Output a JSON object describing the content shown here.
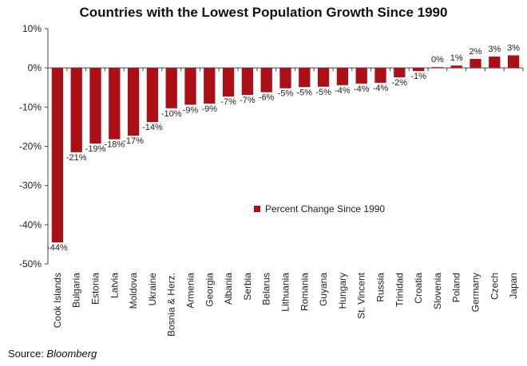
{
  "chart_data": {
    "type": "bar",
    "title": "Countries with the Lowest Population Growth Since 1990",
    "categories": [
      "Cook Islands",
      "Bulgaria",
      "Estonia",
      "Latvia",
      "Moldova",
      "Ukraine",
      "Bosnia & Herz.",
      "Armenia",
      "Georgia",
      "Albania",
      "Serbia",
      "Belarus",
      "Lithuania",
      "Romania",
      "Guyana",
      "Hungary",
      "St. Vincent",
      "Russia",
      "Trinidad",
      "Croatia",
      "Slovenia",
      "Poland",
      "Germany",
      "Czech",
      "Japan"
    ],
    "values": [
      -44,
      -21,
      -19,
      -18,
      -17,
      -14,
      -10,
      -9,
      -9,
      -7,
      -7,
      -6,
      -5,
      -5,
      -5,
      -4,
      -4,
      -4,
      -2,
      -1,
      0,
      1,
      2,
      3,
      3
    ],
    "plot_values": [
      -44.5,
      -21.5,
      -19.3,
      -18.2,
      -17.3,
      -13.8,
      -10.3,
      -9.4,
      -9.1,
      -7.3,
      -6.9,
      -6.2,
      -5.2,
      -4.9,
      -4.8,
      -4.4,
      -4.0,
      -3.8,
      -2.4,
      -0.8,
      0.2,
      0.6,
      2.3,
      2.9,
      3.2
    ],
    "data_labels": [
      "-44%",
      "-21%",
      "-19%",
      "-18%",
      "-17%",
      "-14%",
      "-10%",
      "-9%",
      "-9%",
      "-7%",
      "-7%",
      "-6%",
      "-5%",
      "-5%",
      "-5%",
      "-4%",
      "-4%",
      "-4%",
      "-2%",
      "-1%",
      "0%",
      "1%",
      "2%",
      "3%",
      "3%"
    ],
    "y_ticks": [
      10,
      0,
      -10,
      -20,
      -30,
      -40,
      -50
    ],
    "y_tick_labels": [
      "10%",
      "0%",
      "-10%",
      "-20%",
      "-30%",
      "-40%",
      "-50%"
    ],
    "ylim": [
      -50,
      10
    ],
    "xlabel": "",
    "ylabel": "",
    "grid": false,
    "legend": {
      "label": "Percent Change Since 1990",
      "placement": "center-right"
    },
    "bar_color": "#aa1016",
    "source_label": "Source: ",
    "source_name": "Bloomberg"
  }
}
